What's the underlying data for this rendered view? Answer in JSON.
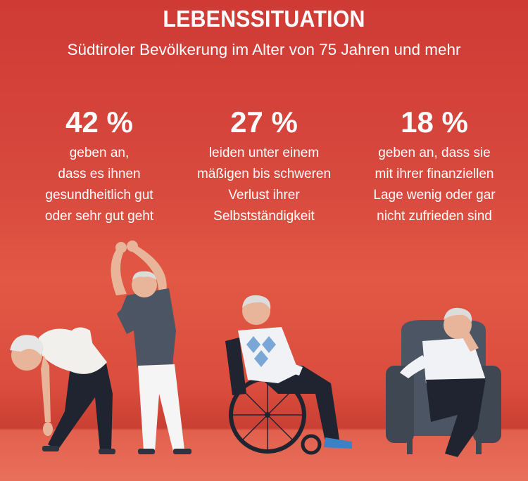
{
  "header": {
    "title": "LEBENSSITUATION",
    "subtitle": "Südtiroler Bevölkerung im Alter von 75 Jahren und mehr"
  },
  "stats": [
    {
      "value": "42 %",
      "lines": [
        "geben an,",
        "dass es ihnen",
        "gesundheitlich gut",
        "oder sehr gut geht"
      ]
    },
    {
      "value": "27 %",
      "lines": [
        "leiden unter einem",
        "mäßigen bis schweren",
        "Verlust ihrer",
        "Selbstständigkeit"
      ]
    },
    {
      "value": "18 %",
      "lines": [
        "geben an, dass sie",
        "mit ihrer finanziellen",
        "Lage wenig oder gar",
        "nicht zufrieden sind"
      ]
    }
  ],
  "colors": {
    "background": "#d84a3e",
    "floor": "#e8705a",
    "text": "#ffffff"
  },
  "illustrations": [
    "woman-stretching",
    "man-stretching",
    "man-in-wheelchair",
    "man-in-armchair"
  ]
}
